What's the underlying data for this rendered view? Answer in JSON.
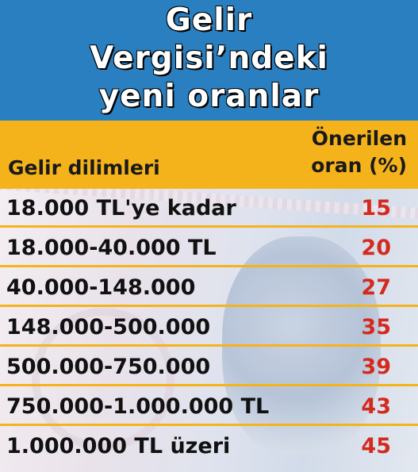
{
  "title": {
    "line1": "Gelir",
    "line2": "Vergisi’ndeki",
    "line3": "yeni oranlar"
  },
  "header": {
    "col_bracket": "Gelir dilimleri",
    "col_rate_line1": "Önerilen",
    "col_rate_line2": "oran (%)"
  },
  "rows": [
    {
      "bracket": "18.000 TL'ye kadar",
      "rate": "15"
    },
    {
      "bracket": "18.000-40.000 TL",
      "rate": "20"
    },
    {
      "bracket": "40.000-148.000",
      "rate": "27"
    },
    {
      "bracket": "148.000-500.000",
      "rate": "35"
    },
    {
      "bracket": "500.000-750.000",
      "rate": "39"
    },
    {
      "bracket": "750.000-1.000.000 TL",
      "rate": "43"
    },
    {
      "bracket": "1.000.000 TL üzeri",
      "rate": "45"
    }
  ],
  "colors": {
    "title_band": "#2a7fc1",
    "header_band": "#f5b31b",
    "rate_text": "#d42a1e"
  }
}
